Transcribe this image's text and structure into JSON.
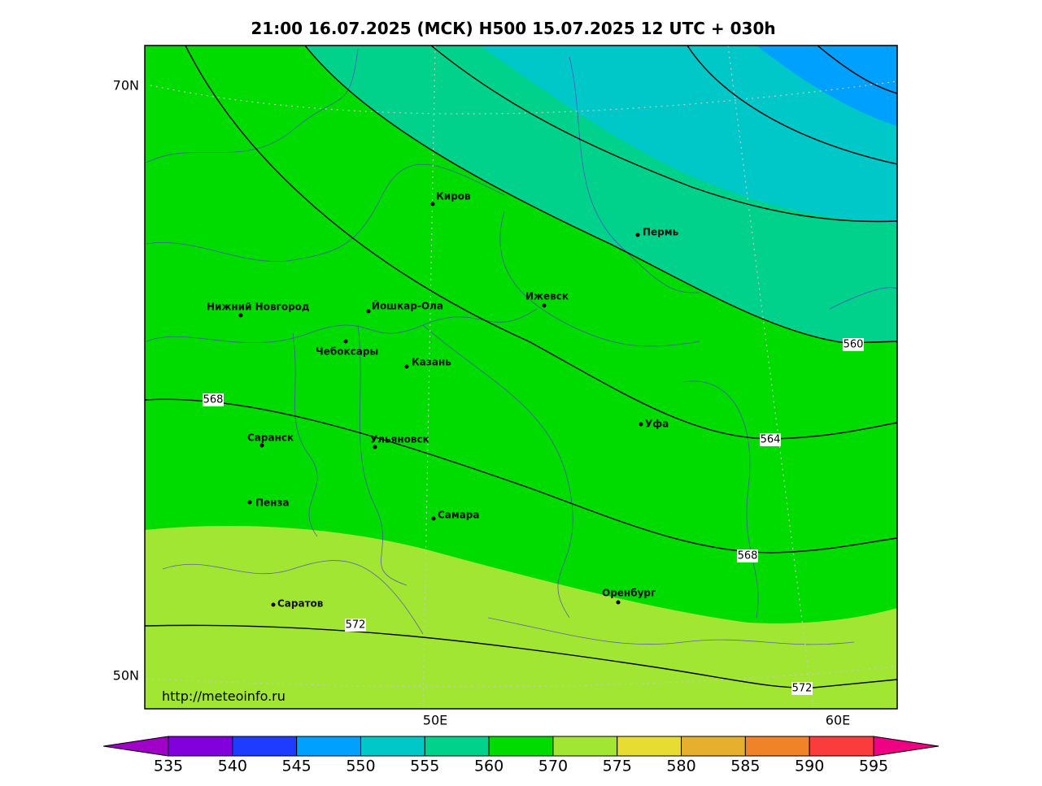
{
  "title": "21:00 16.07.2025 (МСК) H500  15.07.2025 12 UTC + 030h",
  "lat_labels": [
    "70N",
    "50N"
  ],
  "lon_labels": [
    "50E",
    "60E"
  ],
  "cities": [
    "Киров",
    "Пермь",
    "Нижний Новгород",
    "Йошкар-Ола",
    "Ижевск",
    "Чебоксары",
    "Казань",
    "Саранск",
    "Ульяновск",
    "Уфа",
    "Пенза",
    "Самара",
    "Оренбург",
    "Саратов"
  ],
  "contour_labels": [
    "560",
    "564",
    "568",
    "568",
    "572",
    "572"
  ],
  "url": "http://meteoinfo.ru",
  "colorbar": {
    "ticks": [
      535,
      540,
      545,
      550,
      555,
      560,
      570,
      575,
      580,
      585,
      590,
      595
    ],
    "colors": [
      "#a000c8",
      "#8200dc",
      "#1e3cff",
      "#00a0ff",
      "#00c8c8",
      "#00d28c",
      "#00dc00",
      "#a0e632",
      "#e6dc32",
      "#e6af2d",
      "#f08228",
      "#fa3c3c",
      "#f00082"
    ]
  }
}
